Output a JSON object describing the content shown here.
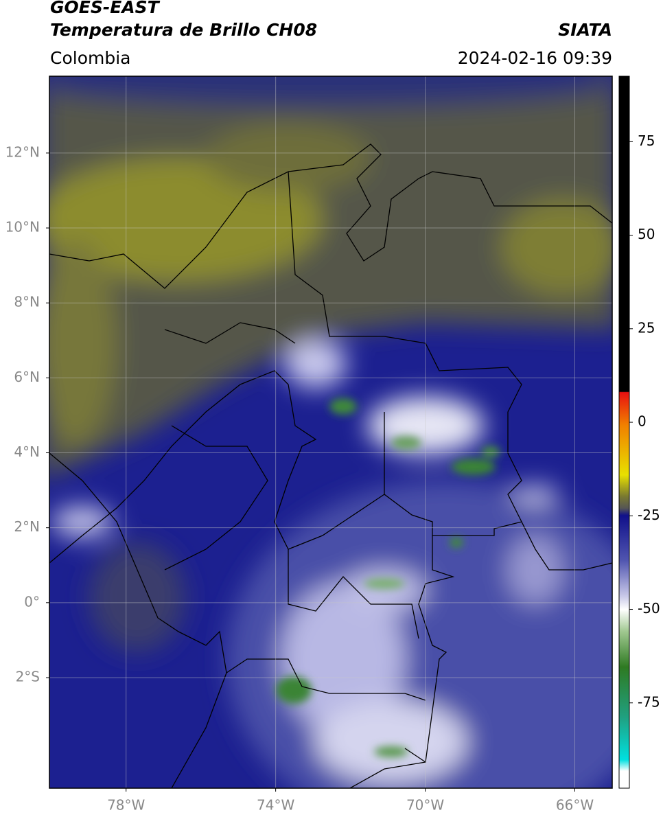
{
  "header": {
    "title": "GOES-EAST",
    "subtitle": "Temperatura de Brillo CH08",
    "region": "Colombia",
    "source": "SIATA",
    "datetime": "2024-02-16 09:39"
  },
  "map": {
    "latlim": [
      -4.95,
      14.05
    ],
    "lonlim": [
      -80.05,
      -65.0
    ],
    "grid": true,
    "lat_ticks": [
      {
        "value": 12,
        "label": "12°N"
      },
      {
        "value": 10,
        "label": "10°N"
      },
      {
        "value": 8,
        "label": "8°N"
      },
      {
        "value": 6,
        "label": "6°N"
      },
      {
        "value": 4,
        "label": "4°N"
      },
      {
        "value": 2,
        "label": "2°N"
      },
      {
        "value": 0,
        "label": "0°"
      },
      {
        "value": -2,
        "label": "2°S"
      }
    ],
    "lon_ticks": [
      {
        "value": -78,
        "label": "78°W"
      },
      {
        "value": -74,
        "label": "74°W"
      },
      {
        "value": -70,
        "label": "70°W"
      },
      {
        "value": -66,
        "label": "66°W"
      }
    ]
  },
  "colorbar": {
    "lim": [
      -97.8,
      92.5
    ],
    "ticks": [
      75,
      50,
      25,
      0,
      -25,
      -50,
      -75
    ]
  }
}
